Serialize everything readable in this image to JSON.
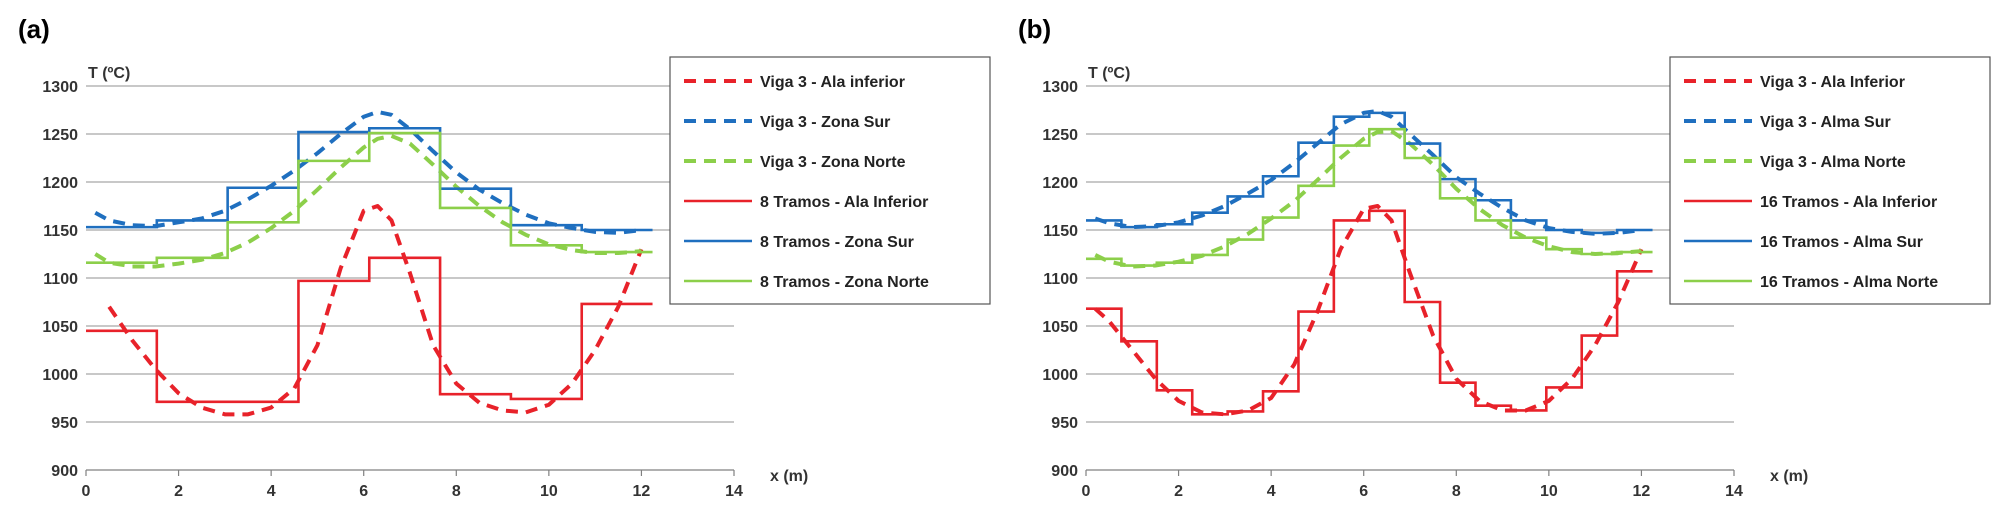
{
  "colors": {
    "red": "#e8222a",
    "blue": "#1f6fbf",
    "green": "#8ccf4a",
    "grid": "#a6a6a6"
  },
  "chart_data": [
    {
      "type": "line",
      "panel_label": "(a)",
      "ylabel": "T (ºC)",
      "xlabel": "x (m)",
      "xlim": [
        0,
        14
      ],
      "ylim": [
        900,
        1300
      ],
      "xticks": [
        0,
        2,
        4,
        6,
        8,
        10,
        12,
        14
      ],
      "yticks": [
        900,
        950,
        1000,
        1050,
        1100,
        1150,
        1200,
        1250,
        1300
      ],
      "grid": "horizontal",
      "legend_position": "top-right",
      "series": [
        {
          "name": "Viga 3 - Ala inferior",
          "color": "red",
          "style": "dashed",
          "x": [
            0.5,
            1.0,
            1.5,
            2.0,
            2.5,
            3.0,
            3.5,
            4.0,
            4.5,
            5.0,
            5.5,
            6.0,
            6.3,
            6.6,
            7.0,
            7.5,
            8.0,
            8.5,
            9.0,
            9.5,
            10.0,
            10.5,
            11.0,
            11.5,
            12.0
          ],
          "y": [
            1070,
            1035,
            1005,
            980,
            965,
            958,
            958,
            965,
            985,
            1030,
            1110,
            1170,
            1175,
            1160,
            1105,
            1030,
            990,
            970,
            962,
            960,
            968,
            990,
            1025,
            1070,
            1130
          ]
        },
        {
          "name": "Viga 3 - Zona Sur",
          "color": "blue",
          "style": "dashed",
          "x": [
            0.2,
            0.5,
            1.0,
            1.5,
            2.0,
            2.5,
            3.0,
            3.5,
            4.0,
            4.5,
            5.0,
            5.5,
            6.0,
            6.3,
            6.6,
            7.0,
            7.5,
            8.0,
            8.5,
            9.0,
            9.5,
            10.0,
            10.5,
            11.0,
            11.5,
            12.0
          ],
          "y": [
            1168,
            1160,
            1155,
            1154,
            1158,
            1162,
            1170,
            1182,
            1196,
            1212,
            1230,
            1250,
            1268,
            1273,
            1270,
            1255,
            1232,
            1210,
            1192,
            1178,
            1166,
            1157,
            1152,
            1148,
            1147,
            1150
          ]
        },
        {
          "name": "Viga 3 - Zona Norte",
          "color": "green",
          "style": "dashed",
          "x": [
            0.2,
            0.5,
            1.0,
            1.5,
            2.0,
            2.5,
            3.0,
            3.5,
            4.0,
            4.5,
            5.0,
            5.5,
            6.0,
            6.3,
            6.6,
            7.0,
            7.5,
            8.0,
            8.5,
            9.0,
            9.5,
            10.0,
            10.5,
            11.0,
            11.5,
            12.0
          ],
          "y": [
            1125,
            1116,
            1112,
            1112,
            1115,
            1119,
            1126,
            1137,
            1152,
            1170,
            1192,
            1215,
            1236,
            1245,
            1248,
            1240,
            1218,
            1195,
            1175,
            1158,
            1145,
            1135,
            1129,
            1126,
            1126,
            1128
          ]
        },
        {
          "name": "8 Tramos - Ala Inferior",
          "color": "red",
          "style": "step",
          "edges": [
            0,
            1.53,
            3.06,
            4.59,
            6.12,
            7.65,
            9.18,
            10.71,
            12.24
          ],
          "values": [
            1045,
            971,
            971,
            1097,
            1121,
            979,
            974,
            1073
          ]
        },
        {
          "name": "8 Tramos - Zona Sur",
          "color": "blue",
          "style": "step",
          "edges": [
            0,
            1.53,
            3.06,
            4.59,
            6.12,
            7.65,
            9.18,
            10.71,
            12.24
          ],
          "values": [
            1153,
            1160,
            1194,
            1252,
            1256,
            1193,
            1155,
            1150
          ]
        },
        {
          "name": "8 Tramos - Zona Norte",
          "color": "green",
          "style": "step",
          "edges": [
            0,
            1.53,
            3.06,
            4.59,
            6.12,
            7.65,
            9.18,
            10.71,
            12.24
          ],
          "values": [
            1116,
            1121,
            1158,
            1222,
            1251,
            1173,
            1134,
            1127
          ]
        }
      ]
    },
    {
      "type": "line",
      "panel_label": "(b)",
      "ylabel": "T (ºC)",
      "xlabel": "x (m)",
      "xlim": [
        0,
        14
      ],
      "ylim": [
        900,
        1300
      ],
      "xticks": [
        0,
        2,
        4,
        6,
        8,
        10,
        12,
        14
      ],
      "yticks": [
        900,
        950,
        1000,
        1050,
        1100,
        1150,
        1200,
        1250,
        1300
      ],
      "grid": "horizontal",
      "legend_position": "top-right",
      "series": [
        {
          "name": "Viga 3 - Ala Inferior",
          "color": "red",
          "style": "dashed",
          "x": [
            0.2,
            0.5,
            1.0,
            1.5,
            2.0,
            2.5,
            3.0,
            3.5,
            4.0,
            4.5,
            5.0,
            5.5,
            6.0,
            6.3,
            6.6,
            7.0,
            7.5,
            8.0,
            8.5,
            9.0,
            9.5,
            10.0,
            10.5,
            11.0,
            11.5,
            12.0
          ],
          "y": [
            1068,
            1055,
            1025,
            995,
            972,
            960,
            958,
            962,
            975,
            1010,
            1065,
            1130,
            1172,
            1175,
            1160,
            1105,
            1040,
            995,
            972,
            962,
            962,
            972,
            995,
            1030,
            1075,
            1130
          ]
        },
        {
          "name": "Viga 3 - Alma Sur",
          "color": "blue",
          "style": "dashed",
          "x": [
            0.2,
            0.5,
            1.0,
            1.5,
            2.0,
            2.5,
            3.0,
            3.5,
            4.0,
            4.5,
            5.0,
            5.5,
            6.0,
            6.3,
            6.6,
            7.0,
            7.5,
            8.0,
            8.5,
            9.0,
            9.5,
            10.0,
            10.5,
            11.0,
            11.5,
            12.0
          ],
          "y": [
            1162,
            1157,
            1153,
            1154,
            1158,
            1165,
            1175,
            1188,
            1202,
            1220,
            1240,
            1260,
            1272,
            1274,
            1268,
            1250,
            1228,
            1205,
            1188,
            1173,
            1160,
            1152,
            1148,
            1146,
            1147,
            1150
          ]
        },
        {
          "name": "Viga 3 - Alma Norte",
          "color": "green",
          "style": "dashed",
          "x": [
            0.2,
            0.5,
            1.0,
            1.5,
            2.0,
            2.5,
            3.0,
            3.5,
            4.0,
            4.5,
            5.0,
            5.5,
            6.0,
            6.3,
            6.6,
            7.0,
            7.5,
            8.0,
            8.5,
            9.0,
            9.5,
            10.0,
            10.5,
            11.0,
            11.5,
            12.0
          ],
          "y": [
            1124,
            1117,
            1112,
            1113,
            1117,
            1123,
            1133,
            1146,
            1162,
            1180,
            1202,
            1225,
            1245,
            1252,
            1253,
            1240,
            1218,
            1193,
            1172,
            1155,
            1142,
            1133,
            1127,
            1125,
            1126,
            1128
          ]
        },
        {
          "name": "16 Tramos - Ala Inferior",
          "color": "red",
          "style": "step",
          "edges": [
            0,
            0.765,
            1.53,
            2.295,
            3.06,
            3.825,
            4.59,
            5.355,
            6.12,
            6.885,
            7.65,
            8.415,
            9.18,
            9.945,
            10.71,
            11.475,
            12.24
          ],
          "values": [
            1068,
            1034,
            983,
            958,
            961,
            982,
            1065,
            1160,
            1170,
            1075,
            991,
            967,
            962,
            986,
            1040,
            1107
          ]
        },
        {
          "name": "16 Tramos - Alma Sur",
          "color": "blue",
          "style": "step",
          "edges": [
            0,
            0.765,
            1.53,
            2.295,
            3.06,
            3.825,
            4.59,
            5.355,
            6.12,
            6.885,
            7.65,
            8.415,
            9.18,
            9.945,
            10.71,
            11.475,
            12.24
          ],
          "values": [
            1160,
            1153,
            1156,
            1168,
            1185,
            1206,
            1241,
            1268,
            1272,
            1240,
            1203,
            1181,
            1160,
            1150,
            1147,
            1150
          ]
        },
        {
          "name": "16 Tramos - Alma Norte",
          "color": "green",
          "style": "step",
          "edges": [
            0,
            0.765,
            1.53,
            2.295,
            3.06,
            3.825,
            4.59,
            5.355,
            6.12,
            6.885,
            7.65,
            8.415,
            9.18,
            9.945,
            10.71,
            11.475,
            12.24
          ],
          "values": [
            1120,
            1113,
            1116,
            1124,
            1140,
            1163,
            1196,
            1238,
            1255,
            1225,
            1183,
            1160,
            1142,
            1130,
            1125,
            1127
          ]
        }
      ]
    }
  ]
}
